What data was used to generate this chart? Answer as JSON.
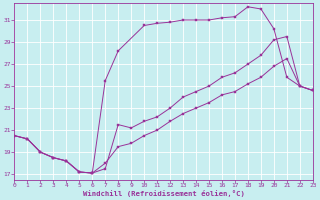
{
  "xlabel": "Windchill (Refroidissement éolien,°C)",
  "bg_color": "#c8eef0",
  "line_color": "#993399",
  "grid_color": "#ffffff",
  "xlim": [
    0,
    23
  ],
  "ylim": [
    16.5,
    32.5
  ],
  "yticks": [
    17,
    19,
    21,
    23,
    25,
    27,
    29,
    31
  ],
  "xticks": [
    0,
    1,
    2,
    3,
    4,
    5,
    6,
    7,
    8,
    9,
    10,
    11,
    12,
    13,
    14,
    15,
    16,
    17,
    18,
    19,
    20,
    21,
    22,
    23
  ],
  "line_upper_x": [
    0,
    1,
    2,
    3,
    4,
    5,
    6,
    7,
    8,
    10,
    11,
    12,
    13,
    14,
    15,
    16,
    17,
    18,
    19,
    20,
    21,
    22,
    23
  ],
  "line_upper_y": [
    20.5,
    20.2,
    19.0,
    18.5,
    18.2,
    17.2,
    17.1,
    25.5,
    28.2,
    30.5,
    30.7,
    30.8,
    31.0,
    31.0,
    31.0,
    31.2,
    31.3,
    32.2,
    32.0,
    30.2,
    25.8,
    25.0,
    24.6
  ],
  "line_mid_x": [
    0,
    1,
    2,
    3,
    4,
    5,
    6,
    7,
    8,
    9,
    10,
    11,
    12,
    13,
    14,
    15,
    16,
    17,
    18,
    19,
    20,
    21,
    22,
    23
  ],
  "line_mid_y": [
    20.5,
    20.2,
    19.0,
    18.5,
    18.2,
    17.2,
    17.1,
    17.5,
    21.5,
    21.2,
    21.8,
    22.2,
    23.0,
    24.0,
    24.5,
    25.0,
    25.8,
    26.2,
    27.0,
    27.8,
    29.2,
    29.5,
    25.0,
    24.6
  ],
  "line_lower_x": [
    0,
    1,
    2,
    3,
    4,
    5,
    6,
    7,
    8,
    9,
    10,
    11,
    12,
    13,
    14,
    15,
    16,
    17,
    18,
    19,
    20,
    21,
    22,
    23
  ],
  "line_lower_y": [
    20.5,
    20.2,
    19.0,
    18.5,
    18.2,
    17.2,
    17.1,
    18.0,
    19.5,
    19.8,
    20.5,
    21.0,
    21.8,
    22.5,
    23.0,
    23.5,
    24.2,
    24.5,
    25.2,
    25.8,
    26.8,
    27.5,
    25.0,
    24.6
  ]
}
